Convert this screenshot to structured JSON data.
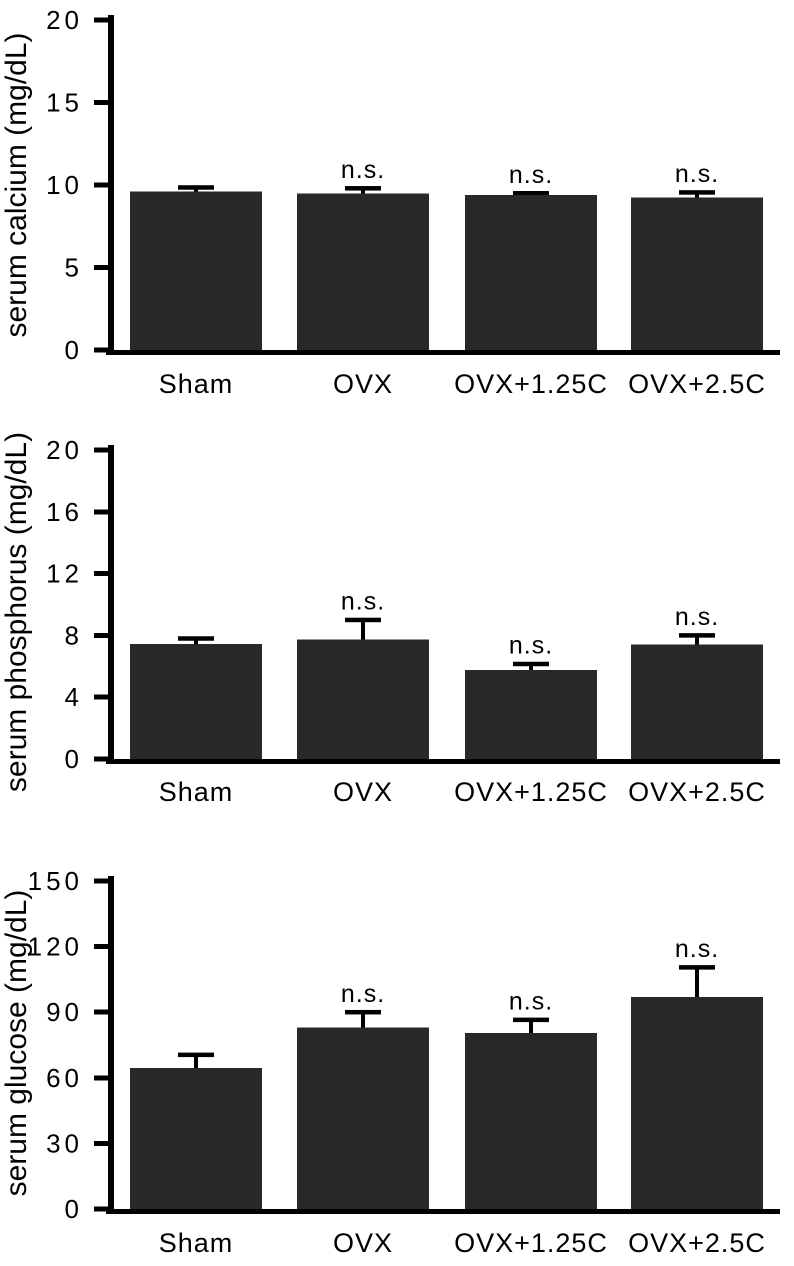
{
  "figure": {
    "background": "#ffffff",
    "bar_color": "#282828",
    "axis_color": "#000000",
    "text_color": "#000000",
    "annotation_text": "n.s."
  },
  "chart_data": [
    {
      "type": "bar",
      "title": "",
      "xlabel": "",
      "ylabel": "serum calcium (mg/dL)",
      "categories": [
        "Sham",
        "OVX",
        "OVX+1.25C",
        "OVX+2.5C"
      ],
      "values": [
        9.6,
        9.5,
        9.4,
        9.25
      ],
      "errors_plus": [
        0.25,
        0.3,
        0.1,
        0.3
      ],
      "annotations": [
        "",
        "n.s.",
        "n.s.",
        "n.s."
      ],
      "ylim": [
        0,
        20
      ],
      "yticks": [
        0,
        5,
        10,
        15,
        20
      ],
      "grid": false,
      "legend": "none"
    },
    {
      "type": "bar",
      "title": "",
      "xlabel": "",
      "ylabel": "serum phosphorus (mg/dL)",
      "categories": [
        "Sham",
        "OVX",
        "OVX+1.25C",
        "OVX+2.5C"
      ],
      "values": [
        7.45,
        7.75,
        5.75,
        7.4
      ],
      "errors_plus": [
        0.35,
        1.25,
        0.4,
        0.6
      ],
      "annotations": [
        "",
        "n.s.",
        "n.s.",
        "n.s."
      ],
      "ylim": [
        0,
        20
      ],
      "yticks": [
        0,
        4,
        8,
        12,
        16,
        20
      ],
      "grid": false,
      "legend": "none"
    },
    {
      "type": "bar",
      "title": "",
      "xlabel": "",
      "ylabel": "serum glucose (mg/dL)",
      "categories": [
        "Sham",
        "OVX",
        "OVX+1.25C",
        "OVX+2.5C"
      ],
      "values": [
        64.5,
        83,
        80.5,
        97
      ],
      "errors_plus": [
        6,
        7,
        6,
        13.5
      ],
      "annotations": [
        "",
        "n.s.",
        "n.s.",
        "n.s."
      ],
      "ylim": [
        0,
        150
      ],
      "yticks": [
        0,
        30,
        60,
        90,
        120,
        150
      ],
      "grid": false,
      "legend": "none"
    }
  ]
}
